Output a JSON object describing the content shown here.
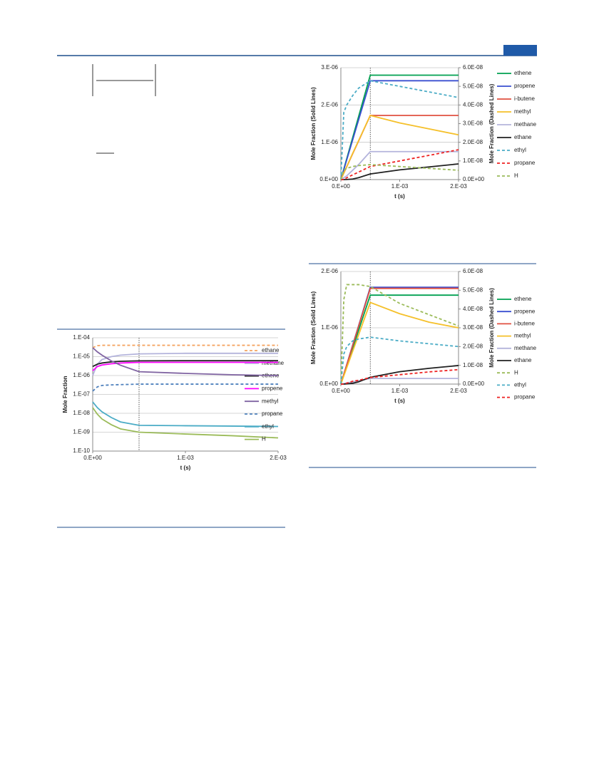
{
  "chart_data": [
    {
      "type": "line",
      "log_y": true,
      "grid": true,
      "legend": "right",
      "vline": 0.0005,
      "ylabel": "Mole Fraction",
      "xlabel": "t (s)",
      "x": [
        0,
        5e-05,
        0.0001,
        0.0002,
        0.0003,
        0.0005,
        0.001,
        0.0015,
        0.002
      ],
      "xlim": [
        0,
        0.002
      ],
      "xticks": [
        {
          "value": 0,
          "label": "0.E+00"
        },
        {
          "value": 0.001,
          "label": "1.E-03"
        },
        {
          "value": 0.002,
          "label": "2.E-03"
        }
      ],
      "ylim": [
        1e-10,
        0.0001
      ],
      "yticks": [
        {
          "value": 1e-10,
          "label": "1.E-10"
        },
        {
          "value": 1e-09,
          "label": "1.E-09"
        },
        {
          "value": 1e-08,
          "label": "1.E-08"
        },
        {
          "value": 1e-07,
          "label": "1.E-07"
        },
        {
          "value": 1e-06,
          "label": "1.E-06"
        },
        {
          "value": 1e-05,
          "label": "1.E-05"
        },
        {
          "value": 0.0001,
          "label": "1.E-04"
        }
      ],
      "series": [
        {
          "name": "ethane",
          "color": "#f4a460",
          "dashed": true,
          "values": [
            3e-05,
            3.8e-05,
            4e-05,
            4e-05,
            4e-05,
            4e-05,
            4e-05,
            4e-05,
            4e-05
          ]
        },
        {
          "name": "methane",
          "color": "#b4b4dc",
          "values": [
            1e-06,
            4e-06,
            7e-06,
            1e-05,
            1.2e-05,
            1.4e-05,
            1.5e-05,
            1.5e-05,
            1.5e-05
          ]
        },
        {
          "name": "ethene",
          "color": "#202020",
          "values": [
            3e-06,
            4e-06,
            4.6e-06,
            5.3e-06,
            5.7e-06,
            6e-06,
            6.1e-06,
            6.1e-06,
            6.1e-06
          ]
        },
        {
          "name": "propene",
          "color": "#ff00ff",
          "values": [
            1.8e-06,
            3e-06,
            3.6e-06,
            4.2e-06,
            4.6e-06,
            5e-06,
            5e-06,
            5e-06,
            5e-06
          ]
        },
        {
          "name": "methyl",
          "color": "#8064a2",
          "values": [
            3e-05,
            1.8e-05,
            1.2e-05,
            6e-06,
            3.5e-06,
            1.6e-06,
            1.3e-06,
            1.1e-06,
            1e-06
          ]
        },
        {
          "name": "propane",
          "color": "#4f81bd",
          "dashed": true,
          "values": [
            1.5e-07,
            2.5e-07,
            3e-07,
            3.2e-07,
            3.3e-07,
            3.5e-07,
            3.5e-07,
            3.5e-07,
            3.5e-07
          ]
        },
        {
          "name": "ethyl",
          "color": "#4bacc6",
          "values": [
            4e-08,
            2e-08,
            1.2e-08,
            6e-09,
            3.5e-09,
            2.3e-09,
            2.2e-09,
            2.1e-09,
            2e-09
          ]
        },
        {
          "name": "H",
          "color": "#9bbb59",
          "values": [
            2e-08,
            9e-09,
            5e-09,
            2.5e-09,
            1.5e-09,
            1e-09,
            8e-10,
            6.5e-10,
            5e-10
          ]
        }
      ]
    },
    {
      "type": "line",
      "grid": true,
      "legend": "right",
      "vline": 0.0005,
      "ylabel": "Mole Fraction (Solid Lines)",
      "y2label": "Mole Fraction (Dashed Lines)",
      "xlabel": "t (s)",
      "x": [
        0,
        5e-05,
        0.0001,
        0.0002,
        0.0003,
        0.0005,
        0.001,
        0.0015,
        0.002
      ],
      "xlim": [
        0,
        0.002
      ],
      "xticks": [
        {
          "value": 0,
          "label": "0.E+00"
        },
        {
          "value": 0.001,
          "label": "1.E-03"
        },
        {
          "value": 0.002,
          "label": "2.E-03"
        }
      ],
      "ylim": [
        0,
        3e-06
      ],
      "yticks": [
        {
          "value": 0,
          "label": "0.E+00"
        },
        {
          "value": 1e-06,
          "label": "1.E-06"
        },
        {
          "value": 2e-06,
          "label": "2.E-06"
        },
        {
          "value": 3e-06,
          "label": "3.E-06"
        }
      ],
      "y2lim": [
        0,
        6e-08
      ],
      "y2ticks": [
        {
          "value": 0,
          "label": "0.0E+00"
        },
        {
          "value": 1e-08,
          "label": "1.0E-08"
        },
        {
          "value": 2e-08,
          "label": "2.0E-08"
        },
        {
          "value": 3e-08,
          "label": "3.0E-08"
        },
        {
          "value": 4e-08,
          "label": "4.0E-08"
        },
        {
          "value": 5e-08,
          "label": "5.0E-08"
        },
        {
          "value": 6e-08,
          "label": "6.0E-08"
        }
      ],
      "series": [
        {
          "name": "ethene",
          "color": "#00a050",
          "values": [
            0,
            2.8e-07,
            5.6e-07,
            1.12e-06,
            1.68e-06,
            2.8e-06,
            2.8e-06,
            2.8e-06,
            2.8e-06
          ]
        },
        {
          "name": "propene",
          "color": "#3a4fd0",
          "values": [
            0,
            2.65e-07,
            5.3e-07,
            1.06e-06,
            1.59e-06,
            2.65e-06,
            2.65e-06,
            2.65e-06,
            2.65e-06
          ]
        },
        {
          "name": "i-butene",
          "color": "#e05040",
          "values": [
            0,
            1.72e-07,
            3.44e-07,
            6.9e-07,
            1.03e-06,
            1.72e-06,
            1.72e-06,
            1.72e-06,
            1.72e-06
          ]
        },
        {
          "name": "methyl",
          "color": "#f5c02a",
          "values": [
            0,
            1.8e-07,
            3.5e-07,
            7e-07,
            1.04e-06,
            1.72e-06,
            1.52e-06,
            1.36e-06,
            1.2e-06
          ]
        },
        {
          "name": "methane",
          "color": "#b4b4dc",
          "values": [
            0,
            5e-08,
            1e-07,
            2.5e-07,
            4e-07,
            7.5e-07,
            7.5e-07,
            7.5e-07,
            7.5e-07
          ]
        },
        {
          "name": "ethane",
          "color": "#202020",
          "values": [
            0,
            0,
            2e-09,
            1.5e-08,
            5e-08,
            1.5e-07,
            2.6e-07,
            3.4e-07,
            4.2e-07
          ]
        },
        {
          "name": "ethyl",
          "color": "#4bacc6",
          "dashed": true,
          "axis": "y2",
          "values": [
            0,
            3.6e-08,
            4e-08,
            4.5e-08,
            4.9e-08,
            5.3e-08,
            5e-08,
            4.7e-08,
            4.4e-08
          ]
        },
        {
          "name": "propane",
          "color": "#ee2222",
          "dashed": true,
          "axis": "y2",
          "values": [
            0,
            0,
            1e-09,
            2.5e-09,
            4e-09,
            7e-09,
            1e-08,
            1.3e-08,
            1.6e-08
          ]
        },
        {
          "name": "H",
          "color": "#9bbb59",
          "dashed": true,
          "axis": "y2",
          "values": [
            0,
            5e-09,
            6e-09,
            7e-09,
            7.5e-09,
            8e-09,
            7e-09,
            6e-09,
            5e-09
          ]
        }
      ]
    },
    {
      "type": "line",
      "grid": true,
      "legend": "right",
      "vline": 0.0005,
      "ylabel": "Mole Fraction (Solid Lines)",
      "y2label": "Mole Fraction (Dashed Lines)",
      "xlabel": "t (s)",
      "x": [
        0,
        5e-05,
        0.0001,
        0.0002,
        0.0003,
        0.0005,
        0.001,
        0.0015,
        0.002
      ],
      "xlim": [
        0,
        0.002
      ],
      "xticks": [
        {
          "value": 0,
          "label": "0.E+00"
        },
        {
          "value": 0.001,
          "label": "1.E-03"
        },
        {
          "value": 0.002,
          "label": "2.E-03"
        }
      ],
      "ylim": [
        0,
        2e-06
      ],
      "yticks": [
        {
          "value": 0,
          "label": "0.E+00"
        },
        {
          "value": 1e-06,
          "label": "1.E-06"
        },
        {
          "value": 2e-06,
          "label": "2.E-06"
        }
      ],
      "y2lim": [
        0,
        6e-08
      ],
      "y2ticks": [
        {
          "value": 0,
          "label": "0.0E+00"
        },
        {
          "value": 1e-08,
          "label": "1.0E-08"
        },
        {
          "value": 2e-08,
          "label": "2.0E-08"
        },
        {
          "value": 3e-08,
          "label": "3.0E-08"
        },
        {
          "value": 4e-08,
          "label": "4.0E-08"
        },
        {
          "value": 5e-08,
          "label": "5.0E-08"
        },
        {
          "value": 6e-08,
          "label": "6.0E-08"
        }
      ],
      "series": [
        {
          "name": "ethene",
          "color": "#00a050",
          "values": [
            0,
            1.58e-07,
            3.16e-07,
            6.3e-07,
            9.5e-07,
            1.58e-06,
            1.58e-06,
            1.58e-06,
            1.58e-06
          ]
        },
        {
          "name": "propene",
          "color": "#3a4fd0",
          "values": [
            0,
            1.72e-07,
            3.44e-07,
            6.9e-07,
            1.03e-06,
            1.72e-06,
            1.72e-06,
            1.72e-06,
            1.72e-06
          ]
        },
        {
          "name": "i-butene",
          "color": "#e05040",
          "values": [
            0,
            1.7e-07,
            3.4e-07,
            6.8e-07,
            1.02e-06,
            1.7e-06,
            1.7e-06,
            1.7e-06,
            1.7e-06
          ]
        },
        {
          "name": "methyl",
          "color": "#f5c02a",
          "values": [
            0,
            1.45e-07,
            2.9e-07,
            5.8e-07,
            8.7e-07,
            1.45e-06,
            1.25e-06,
            1.1e-06,
            1e-06
          ]
        },
        {
          "name": "methane",
          "color": "#b4b4dc",
          "values": [
            0,
            1e-08,
            2e-08,
            4e-08,
            6e-08,
            1e-07,
            1e-07,
            1e-07,
            1e-07
          ]
        },
        {
          "name": "ethane",
          "color": "#202020",
          "values": [
            0,
            0,
            3e-09,
            1.5e-08,
            4e-08,
            1.2e-07,
            2.2e-07,
            2.8e-07,
            3.3e-07
          ]
        },
        {
          "name": "H",
          "color": "#9bbb59",
          "dashed": true,
          "axis": "y2",
          "values": [
            0,
            4.5e-08,
            5.3e-08,
            5.3e-08,
            5.3e-08,
            5.2e-08,
            4.3e-08,
            3.7e-08,
            3.1e-08
          ]
        },
        {
          "name": "ethyl",
          "color": "#4bacc6",
          "dashed": true,
          "axis": "y2",
          "values": [
            0,
            1.6e-08,
            2e-08,
            2.3e-08,
            2.4e-08,
            2.5e-08,
            2.3e-08,
            2.15e-08,
            2e-08
          ]
        },
        {
          "name": "propane",
          "color": "#ee2222",
          "dashed": true,
          "axis": "y2",
          "values": [
            0,
            0,
            5e-10,
            1.5e-09,
            2e-09,
            3.5e-09,
            5e-09,
            6.5e-09,
            7.7e-09
          ]
        }
      ]
    }
  ]
}
